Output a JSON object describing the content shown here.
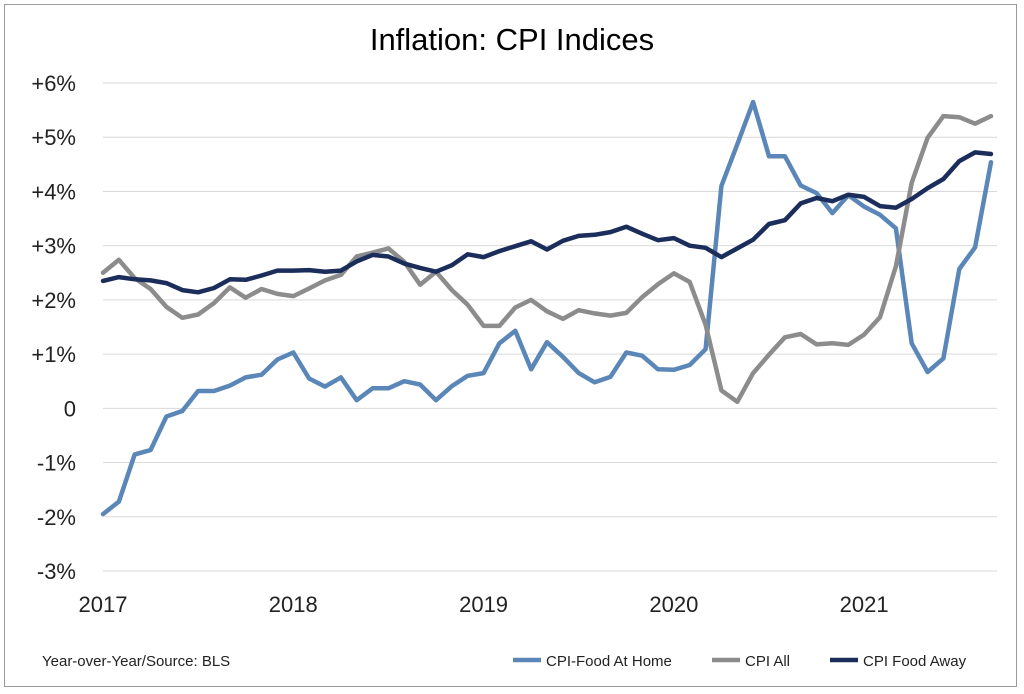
{
  "chart_data": {
    "type": "line",
    "title": "Inflation: CPI Indices",
    "source_note": "Year-over-Year/Source: BLS",
    "ylim": [
      -3,
      6
    ],
    "yticks": [
      6,
      5,
      4,
      3,
      2,
      1,
      0,
      -1,
      -2,
      -3
    ],
    "ytick_labels": [
      "+6%",
      "+5%",
      "+4%",
      "+3%",
      "+2%",
      "+1%",
      "0",
      "-1%",
      "-2%",
      "-3%"
    ],
    "xlim": [
      0,
      56
    ],
    "xticks": [
      0,
      12,
      24,
      36,
      48
    ],
    "xtick_labels": [
      "2017",
      "2018",
      "2019",
      "2020",
      "2021"
    ],
    "grid": true,
    "legend_position": "bottom-right",
    "series": [
      {
        "name": "CPI-Food At Home",
        "color": "#5b87b8",
        "values": [
          -1.95,
          -1.72,
          -0.85,
          -0.77,
          -0.15,
          -0.05,
          0.32,
          0.32,
          0.42,
          0.57,
          0.62,
          0.9,
          1.03,
          0.55,
          0.4,
          0.57,
          0.15,
          0.37,
          0.37,
          0.5,
          0.44,
          0.15,
          0.41,
          0.6,
          0.65,
          1.2,
          1.43,
          0.72,
          1.22,
          0.95,
          0.65,
          0.48,
          0.58,
          1.03,
          0.97,
          0.72,
          0.71,
          0.8,
          1.09,
          4.1,
          4.87,
          5.65,
          4.65,
          4.65,
          4.11,
          3.97,
          3.6,
          3.93,
          3.72,
          3.57,
          3.32,
          1.2,
          0.67,
          0.92,
          2.57,
          2.97,
          4.54
        ]
      },
      {
        "name": "CPI All",
        "color": "#8c8c8c",
        "values": [
          2.5,
          2.74,
          2.4,
          2.2,
          1.87,
          1.67,
          1.73,
          1.94,
          2.23,
          2.04,
          2.2,
          2.11,
          2.07,
          2.21,
          2.36,
          2.46,
          2.8,
          2.87,
          2.95,
          2.7,
          2.28,
          2.52,
          2.18,
          1.91,
          1.52,
          1.52,
          1.86,
          2.0,
          1.79,
          1.65,
          1.81,
          1.75,
          1.71,
          1.76,
          2.05,
          2.29,
          2.49,
          2.33,
          1.54,
          0.33,
          0.12,
          0.65,
          0.99,
          1.31,
          1.37,
          1.18,
          1.2,
          1.17,
          1.36,
          1.68,
          2.62,
          4.16,
          4.99,
          5.39,
          5.37,
          5.25,
          5.39
        ]
      },
      {
        "name": "CPI Food Away",
        "color": "#1b2d5a",
        "values": [
          2.35,
          2.42,
          2.38,
          2.36,
          2.31,
          2.18,
          2.14,
          2.22,
          2.38,
          2.37,
          2.45,
          2.54,
          2.54,
          2.55,
          2.52,
          2.54,
          2.71,
          2.83,
          2.8,
          2.67,
          2.59,
          2.52,
          2.64,
          2.84,
          2.79,
          2.9,
          2.99,
          3.08,
          2.93,
          3.09,
          3.18,
          3.2,
          3.25,
          3.35,
          3.22,
          3.1,
          3.14,
          3.0,
          2.96,
          2.79,
          2.95,
          3.11,
          3.4,
          3.47,
          3.78,
          3.88,
          3.82,
          3.94,
          3.9,
          3.73,
          3.7,
          3.86,
          4.06,
          4.23,
          4.56,
          4.72,
          4.69
        ]
      }
    ]
  }
}
